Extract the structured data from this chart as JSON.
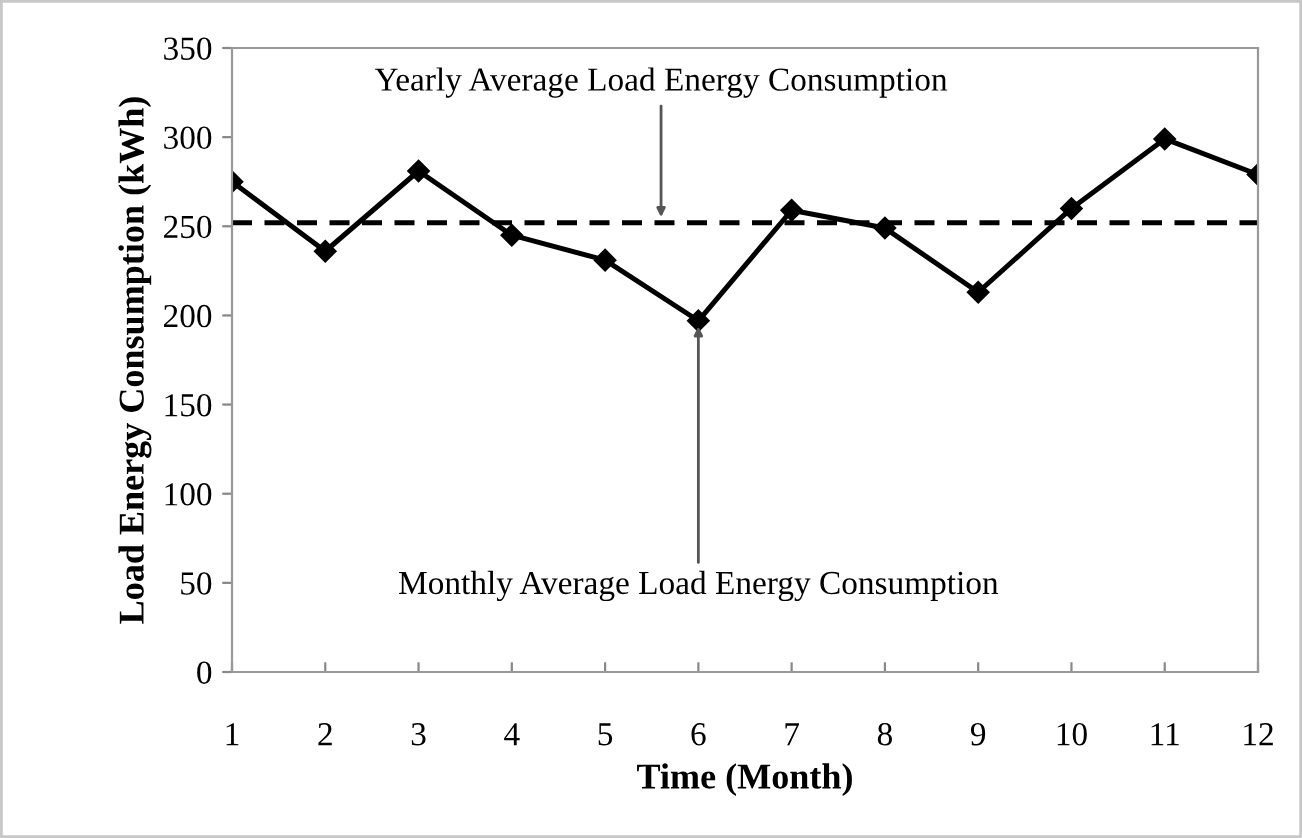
{
  "chart_data": {
    "type": "line",
    "xlabel": "Time (Month)",
    "ylabel": "Load Energy Consumption (kWh)",
    "x": [
      1,
      2,
      3,
      4,
      5,
      6,
      7,
      8,
      9,
      10,
      11,
      12
    ],
    "series": [
      {
        "color": "#000000",
        "values": [
          275,
          236,
          281,
          245,
          231,
          197,
          259,
          249,
          213,
          260,
          299,
          279
        ]
      }
    ],
    "xlim": [
      1,
      12
    ],
    "xticks": [
      1,
      2,
      3,
      4,
      5,
      6,
      7,
      8,
      9,
      10,
      11,
      12
    ],
    "ylim": [
      0,
      350
    ],
    "yticks": [
      0,
      50,
      100,
      150,
      200,
      250,
      300,
      350
    ],
    "ref_lines": [
      {
        "axis": "y",
        "value": 252,
        "color": "#000000",
        "line_style": "dashed"
      }
    ],
    "annotations": [
      {
        "text": "Yearly Average Load Energy Consumption",
        "x": 5.6,
        "y": 252
      },
      {
        "text": "Monthly Average Load Energy Consumption",
        "x": 6,
        "y": 197
      }
    ],
    "marker": "diamond",
    "line_style": "solid",
    "grid": false,
    "legend": false
  }
}
